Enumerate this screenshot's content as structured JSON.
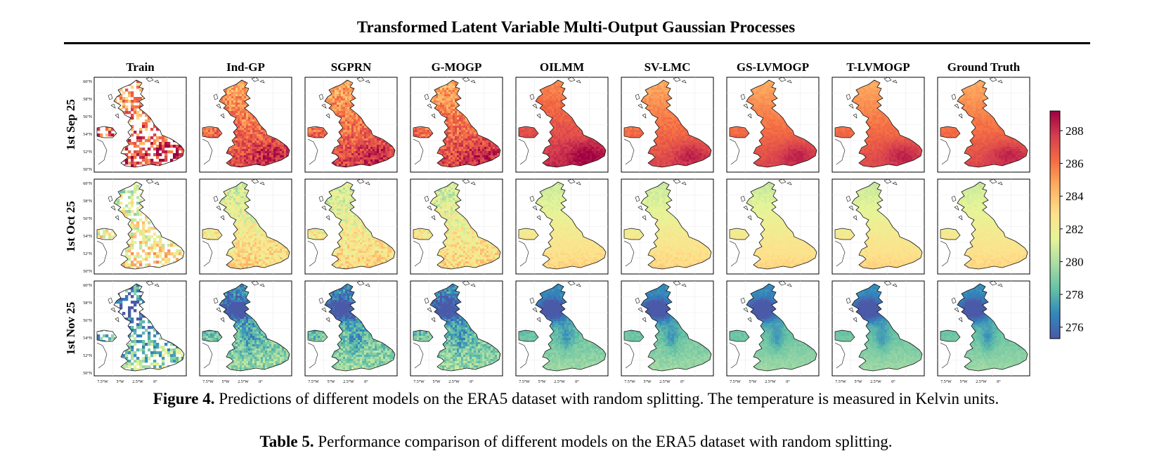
{
  "header": {
    "title": "Transformed Latent Variable Multi-Output Gaussian Processes"
  },
  "figure": {
    "models": [
      "Train",
      "Ind-GP",
      "SGPRN",
      "G-MOGP",
      "OILMM",
      "SV-LMC",
      "GS-LVMOGP",
      "T-LVMOGP",
      "Ground Truth"
    ],
    "dates": [
      "1st Sep 25",
      "1st Oct 25",
      "1st Nov 25"
    ],
    "lat_ticks": [
      "60°N",
      "58°N",
      "56°N",
      "54°N",
      "52°N",
      "50°N"
    ],
    "lon_ticks": [
      "7.5°W",
      "5°W",
      "2.5°W",
      "0°"
    ],
    "colorbar": {
      "ticks": [
        "288",
        "286",
        "284",
        "282",
        "280",
        "278",
        "276"
      ],
      "range": [
        275.3,
        289.2
      ]
    },
    "colors": {
      "colormap": [
        "#4a59a8",
        "#3288bd",
        "#66c2a5",
        "#abdda4",
        "#e6f598",
        "#fee08b",
        "#fdae61",
        "#f46d43",
        "#d53e4f",
        "#9e0142"
      ]
    }
  },
  "captions": {
    "figure_label": "Figure 4.",
    "figure_text": " Predictions of different models on the ERA5 dataset with random splitting. The temperature is measured in Kelvin units.",
    "table_label": "Table 5.",
    "table_text": " Performance comparison of different models on the ERA5 dataset with random splitting."
  }
}
